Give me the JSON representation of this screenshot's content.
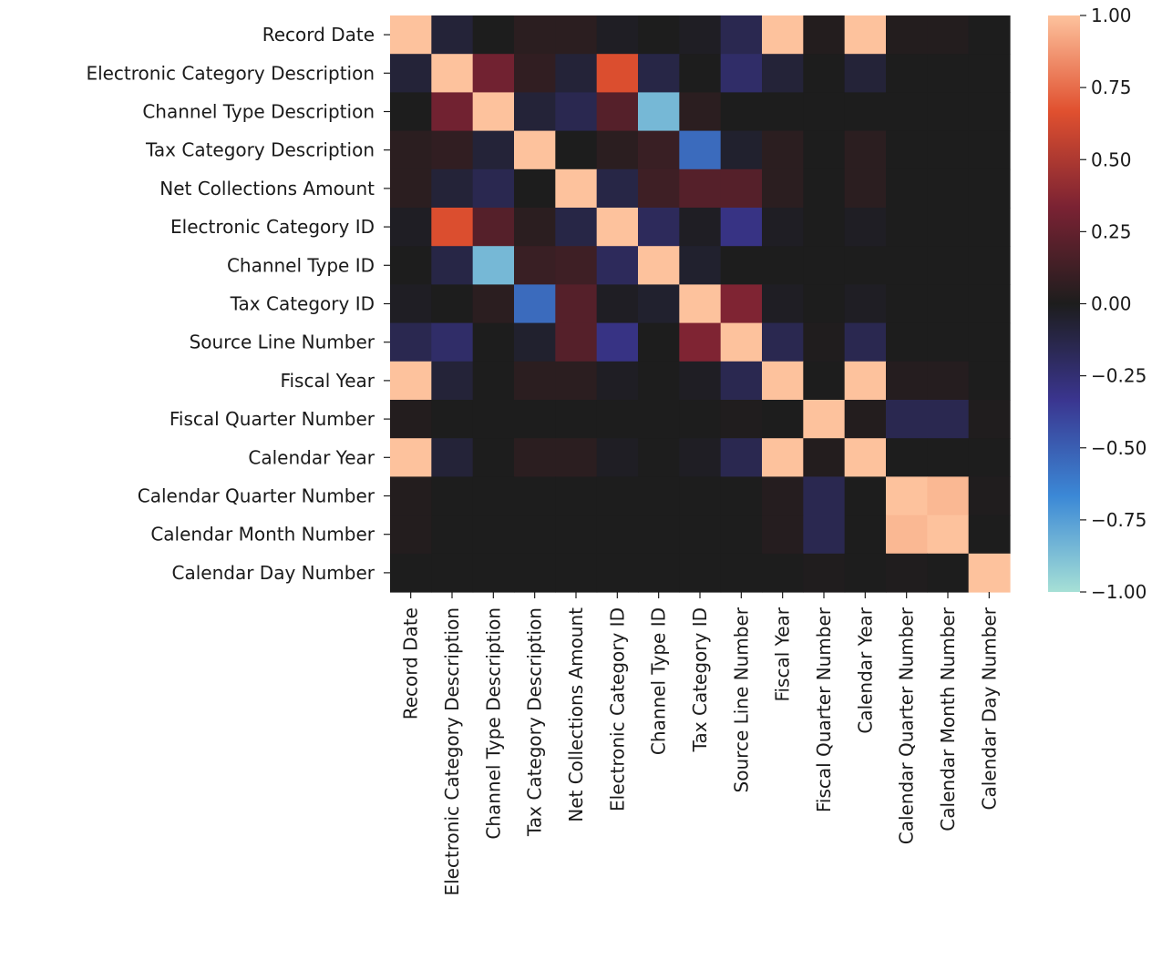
{
  "chart_data": {
    "type": "heatmap",
    "title": "",
    "xlabel": "",
    "ylabel": "",
    "labels": [
      "Record Date",
      "Electronic Category Description",
      "Channel Type Description",
      "Tax Category Description",
      "Net Collections Amount",
      "Electronic Category ID",
      "Channel Type ID",
      "Tax Category ID",
      "Source Line Number",
      "Fiscal Year",
      "Fiscal Quarter Number",
      "Calendar Year",
      "Calendar Quarter Number",
      "Calendar Month Number",
      "Calendar Day Number"
    ],
    "matrix": [
      [
        1.0,
        -0.08,
        0.0,
        0.05,
        0.05,
        -0.02,
        0.0,
        -0.02,
        -0.15,
        1.0,
        0.02,
        1.0,
        0.02,
        0.02,
        0.0
      ],
      [
        -0.08,
        1.0,
        0.3,
        0.07,
        -0.08,
        0.65,
        -0.12,
        0.0,
        -0.22,
        -0.08,
        0.0,
        -0.08,
        0.0,
        0.0,
        0.0
      ],
      [
        0.0,
        0.3,
        1.0,
        -0.08,
        -0.15,
        0.2,
        -0.85,
        0.05,
        0.0,
        0.0,
        0.0,
        0.0,
        0.0,
        0.0,
        0.0
      ],
      [
        0.05,
        0.07,
        -0.08,
        1.0,
        0.0,
        0.05,
        0.1,
        -0.55,
        -0.05,
        0.05,
        0.0,
        0.05,
        0.0,
        0.0,
        0.0
      ],
      [
        0.05,
        -0.08,
        -0.15,
        0.0,
        1.0,
        -0.12,
        0.12,
        0.2,
        0.2,
        0.05,
        0.0,
        0.05,
        0.0,
        0.0,
        0.0
      ],
      [
        -0.02,
        0.65,
        0.2,
        0.05,
        -0.12,
        1.0,
        -0.18,
        -0.02,
        -0.3,
        -0.02,
        0.0,
        -0.02,
        0.0,
        0.0,
        0.0
      ],
      [
        0.0,
        -0.12,
        -0.85,
        0.1,
        0.12,
        -0.18,
        1.0,
        -0.05,
        0.0,
        0.0,
        0.0,
        0.0,
        0.0,
        0.0,
        0.0
      ],
      [
        -0.02,
        0.0,
        0.05,
        -0.55,
        0.2,
        -0.02,
        -0.05,
        1.0,
        0.35,
        -0.02,
        0.0,
        -0.02,
        0.0,
        0.0,
        0.0
      ],
      [
        -0.15,
        -0.22,
        0.0,
        -0.05,
        0.2,
        -0.3,
        0.0,
        0.35,
        1.0,
        -0.15,
        0.01,
        -0.15,
        0.0,
        0.0,
        0.0
      ],
      [
        1.0,
        -0.08,
        0.0,
        0.05,
        0.05,
        -0.02,
        0.0,
        -0.02,
        -0.15,
        1.0,
        0.0,
        1.0,
        0.03,
        0.03,
        0.0
      ],
      [
        0.02,
        0.0,
        0.0,
        0.0,
        0.0,
        0.0,
        0.0,
        0.0,
        0.01,
        0.0,
        1.0,
        0.02,
        -0.15,
        -0.15,
        0.01
      ],
      [
        1.0,
        -0.08,
        0.0,
        0.05,
        0.05,
        -0.02,
        0.0,
        -0.02,
        -0.15,
        1.0,
        0.02,
        1.0,
        0.0,
        0.0,
        0.0
      ],
      [
        0.02,
        0.0,
        0.0,
        0.0,
        0.0,
        0.0,
        0.0,
        0.0,
        0.0,
        0.03,
        -0.15,
        0.0,
        1.0,
        0.97,
        0.01
      ],
      [
        0.02,
        0.0,
        0.0,
        0.0,
        0.0,
        0.0,
        0.0,
        0.0,
        0.0,
        0.03,
        -0.15,
        0.0,
        0.97,
        1.0,
        0.0
      ],
      [
        0.0,
        0.0,
        0.0,
        0.0,
        0.0,
        0.0,
        0.0,
        0.0,
        0.0,
        0.0,
        0.01,
        0.0,
        0.01,
        0.0,
        1.0
      ]
    ],
    "vmin": -1.0,
    "vmax": 1.0,
    "colorbar_ticks": [
      "1.00",
      "0.75",
      "0.50",
      "0.25",
      "0.00",
      "−0.25",
      "−0.50",
      "−0.75",
      "−1.00"
    ],
    "colormap": "icefire",
    "colormap_stops": [
      "#a6e0d6",
      "#3b88d6",
      "#3a358f",
      "#1d1d1d",
      "#7a2233",
      "#e0502f",
      "#fdc29d"
    ],
    "grid": false,
    "legend": "colorbar-right"
  }
}
